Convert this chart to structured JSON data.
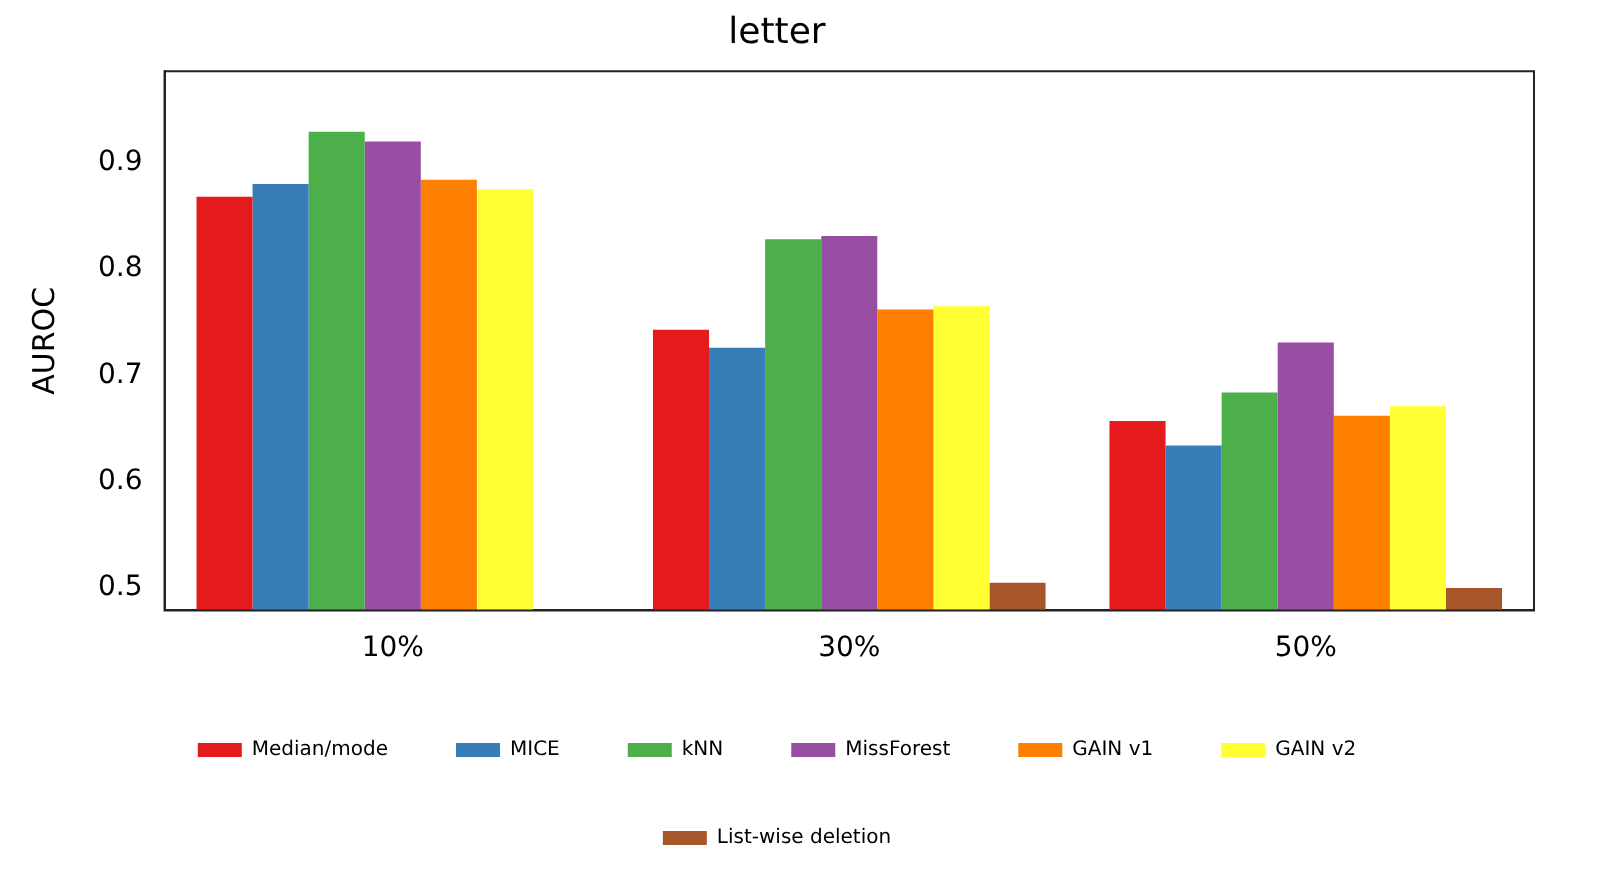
{
  "chart_data": {
    "type": "bar",
    "title": "letter",
    "ylabel": "AUROC",
    "categories": [
      "10%",
      "30%",
      "50%"
    ],
    "series": [
      {
        "name": "Median/mode",
        "color": "#e41a1c",
        "values": [
          0.868,
          0.743,
          0.657
        ]
      },
      {
        "name": "MICE",
        "color": "#377eb8",
        "values": [
          0.88,
          0.726,
          0.634
        ]
      },
      {
        "name": "kNN",
        "color": "#4daf4a",
        "values": [
          0.929,
          0.828,
          0.684
        ]
      },
      {
        "name": "MissForest",
        "color": "#984ea3",
        "values": [
          0.92,
          0.831,
          0.731
        ]
      },
      {
        "name": "GAIN v1",
        "color": "#ff7f00",
        "values": [
          0.884,
          0.762,
          0.662
        ]
      },
      {
        "name": "GAIN v2",
        "color": "#ffff33",
        "values": [
          0.875,
          0.765,
          0.671
        ]
      },
      {
        "name": "List-wise deletion",
        "color": "#a65628",
        "values": [
          null,
          0.505,
          0.5
        ]
      }
    ],
    "ylim": [
      0.479,
      0.986
    ],
    "yticks": [
      0.5,
      0.6,
      0.7,
      0.8,
      0.9
    ],
    "grid": false,
    "legend": "bottom"
  }
}
